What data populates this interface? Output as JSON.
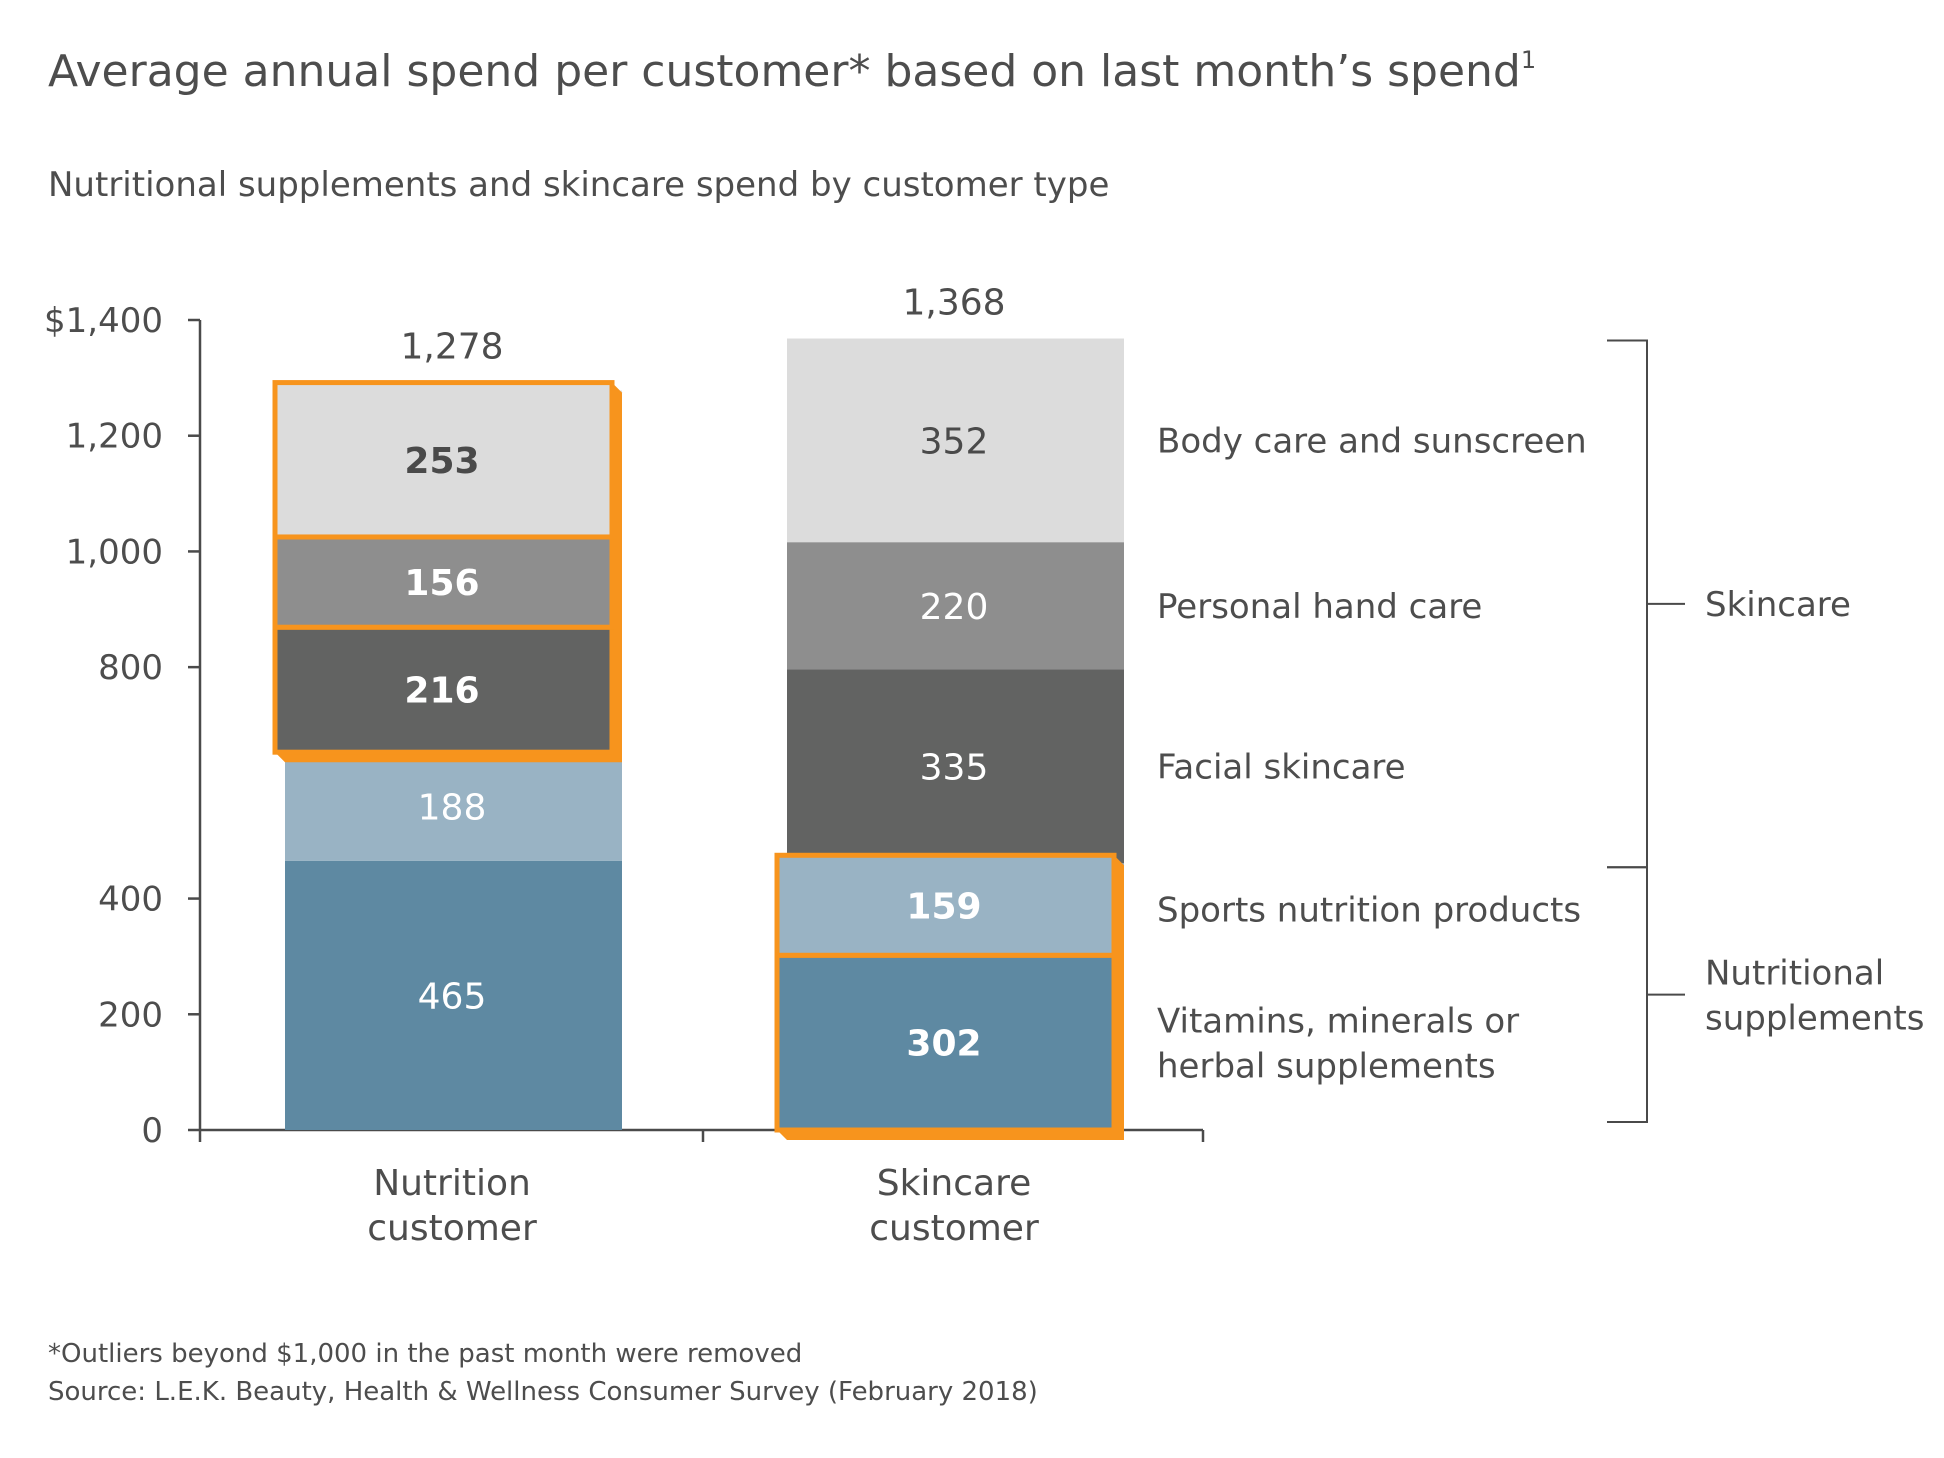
{
  "chart_data": {
    "type": "bar",
    "stacked": true,
    "title": "Average annual spend per customer* based on last month’s spend",
    "title_superscript": "1",
    "subtitle": "Nutritional supplements and skincare spend by customer type",
    "categories": [
      "Nutrition customer",
      "Skincare customer"
    ],
    "category_lines": [
      [
        "Nutrition",
        "customer"
      ],
      [
        "Skincare",
        "customer"
      ]
    ],
    "totals": [
      "1,278",
      "1,368"
    ],
    "ylim": [
      0,
      1400
    ],
    "yticks": [
      0,
      200,
      400,
      800,
      1000,
      1200,
      1400
    ],
    "ytick_labels": [
      "0",
      "200",
      "400",
      "800",
      "1,000",
      "1,200",
      "$1,400"
    ],
    "series": [
      {
        "name": "Vitamins, minerals or herbal supplements",
        "label_lines": [
          "Vitamins, minerals or",
          "herbal supplements"
        ],
        "values": [
          465,
          302
        ],
        "labels": [
          "465",
          "302"
        ],
        "color": "#5e89a2",
        "label_color": "#ffffff",
        "bold": [
          false,
          true
        ]
      },
      {
        "name": "Sports nutrition products",
        "label_lines": [
          "Sports nutrition products"
        ],
        "values": [
          188,
          159
        ],
        "labels": [
          "188",
          "159"
        ],
        "color": "#99b3c4",
        "label_color": "#ffffff",
        "bold": [
          false,
          true
        ]
      },
      {
        "name": "Facial skincare",
        "label_lines": [
          "Facial skincare"
        ],
        "values": [
          216,
          335
        ],
        "labels": [
          "216",
          "335"
        ],
        "color": "#626362",
        "label_color": "#ffffff",
        "bold": [
          true,
          false
        ]
      },
      {
        "name": "Personal hand care",
        "label_lines": [
          "Personal hand care"
        ],
        "values": [
          156,
          220
        ],
        "labels": [
          "156",
          "220"
        ],
        "color": "#8e8e8e",
        "label_color": "#ffffff",
        "bold": [
          true,
          false
        ]
      },
      {
        "name": "Body care and sunscreen",
        "label_lines": [
          "Body care and sunscreen"
        ],
        "values": [
          253,
          352
        ],
        "labels": [
          "253",
          "352"
        ],
        "color": "#dcdcdc",
        "label_color": "#4a4a4a",
        "bold": [
          true,
          false
        ]
      }
    ],
    "highlights": [
      {
        "category": 0,
        "series_from": 2,
        "series_to": 4,
        "color": "#f7941d"
      },
      {
        "category": 1,
        "series_from": 0,
        "series_to": 1,
        "color": "#f7941d"
      }
    ],
    "groups": [
      {
        "name": "Skincare",
        "label_lines": [
          "Skincare"
        ],
        "series_from": 2,
        "series_to": 4
      },
      {
        "name": "Nutritional supplements",
        "label_lines": [
          "Nutritional",
          "supplements"
        ],
        "series_from": 0,
        "series_to": 1
      }
    ],
    "legend": "right, inline labels with brackets",
    "grid": false
  },
  "footnotes": [
    "*Outliers beyond $1,000 in the past month were removed",
    "Source: L.E.K. Beauty, Health & Wellness Consumer Survey (February 2018)"
  ]
}
